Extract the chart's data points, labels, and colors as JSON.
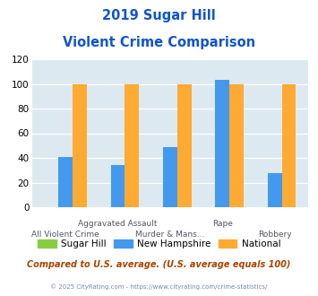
{
  "title_line1": "2019 Sugar Hill",
  "title_line2": "Violent Crime Comparison",
  "categories": [
    "All Violent Crime",
    "Aggravated Assault",
    "Murder & Mans...",
    "Rape",
    "Robbery"
  ],
  "row1_labels": [
    "",
    "Aggravated Assault",
    "",
    "Rape",
    ""
  ],
  "row2_labels": [
    "All Violent Crime",
    "",
    "Murder & Mans...",
    "",
    "Robbery"
  ],
  "sugar_hill": [
    0,
    0,
    0,
    0,
    0
  ],
  "new_hampshire": [
    41,
    34,
    49,
    103,
    28
  ],
  "national": [
    100,
    100,
    100,
    100,
    100
  ],
  "color_sugar_hill": "#88cc44",
  "color_nh": "#4499ee",
  "color_national": "#ffaa33",
  "ylim": [
    0,
    120
  ],
  "yticks": [
    0,
    20,
    40,
    60,
    80,
    100,
    120
  ],
  "bg_color": "#dce9f0",
  "title_color": "#1155cc",
  "footer_text": "Compared to U.S. average. (U.S. average equals 100)",
  "copyright_text": "© 2025 CityRating.com - https://www.cityrating.com/crime-statistics/",
  "footer_color": "#aa4400",
  "copyright_color": "#7788aa",
  "legend_labels": [
    "Sugar Hill",
    "New Hampshire",
    "National"
  ],
  "bar_width": 0.27
}
